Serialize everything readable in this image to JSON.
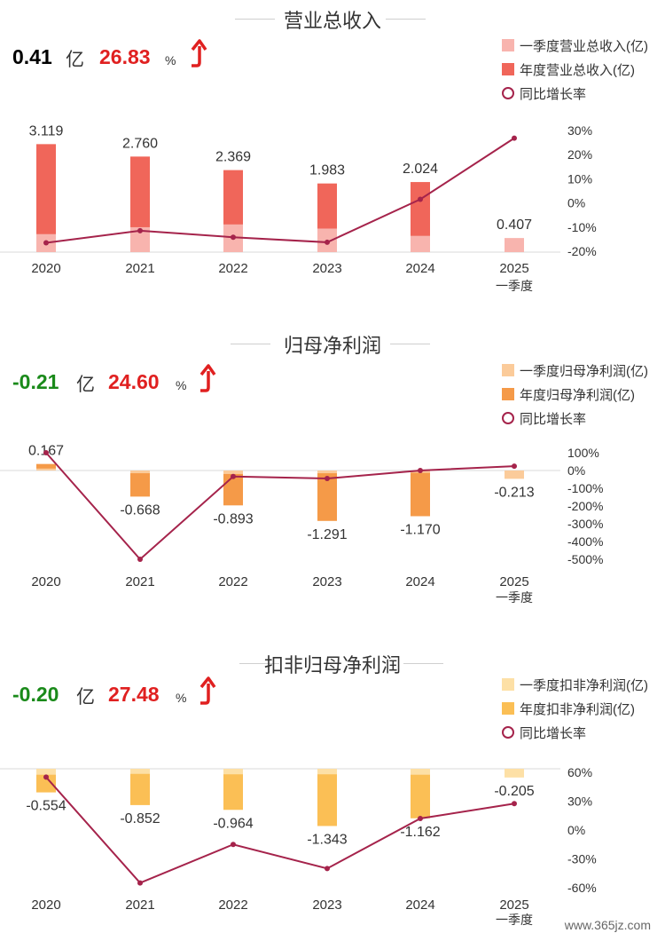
{
  "panels": [
    {
      "title": "营业总收入",
      "kpi": {
        "value": "0.41",
        "unit": "亿",
        "growth": "26.83",
        "pct": "%",
        "value_color": "#e02020"
      },
      "legend": [
        "一季度营业总收入(亿)",
        "年度营业总收入(亿)",
        "同比增长率"
      ],
      "colors": {
        "annual": "#f0665a",
        "q1": "#f8b4ae",
        "line": "#a5234b"
      }
    },
    {
      "title": "归母净利润",
      "kpi": {
        "value": "-0.21",
        "unit": "亿",
        "growth": "24.60",
        "pct": "%",
        "value_color": "#1a8a1a"
      },
      "legend": [
        "一季度归母净利润(亿)",
        "年度归母净利润(亿)",
        "同比增长率"
      ],
      "colors": {
        "annual": "#f59a48",
        "q1": "#fbcb9a",
        "line": "#a5234b"
      }
    },
    {
      "title": "扣非归母净利润",
      "kpi": {
        "value": "-0.20",
        "unit": "亿",
        "growth": "27.48",
        "pct": "%",
        "value_color": "#1a8a1a"
      },
      "legend": [
        "一季度扣非净利润(亿)",
        "年度扣非净利润(亿)",
        "同比增长率"
      ],
      "colors": {
        "annual": "#fbbf55",
        "q1": "#fde0a6",
        "line": "#a5234b"
      }
    }
  ],
  "chart_data": [
    {
      "type": "bar",
      "title": "营业总收入",
      "categories": [
        "2020",
        "2021",
        "2022",
        "2023",
        "2024",
        "2025"
      ],
      "category_sublabels": [
        "",
        "",
        "",
        "",
        "",
        "一季度"
      ],
      "series": [
        {
          "name": "一季度营业总收入(亿)",
          "values": [
            0.52,
            0.72,
            0.8,
            0.68,
            0.47,
            0.407
          ]
        },
        {
          "name": "年度营业总收入(亿)",
          "values": [
            3.119,
            2.76,
            2.369,
            1.983,
            2.024,
            null
          ]
        },
        {
          "name": "同比增长率",
          "type": "line",
          "axis": "right",
          "values": [
            -16.5,
            -11.5,
            -14.2,
            -16.3,
            1.5,
            26.83
          ]
        }
      ],
      "data_labels": [
        "3.119",
        "2.760",
        "2.369",
        "1.983",
        "2.024",
        "0.407"
      ],
      "yticks_right": [
        "30%",
        "20%",
        "10%",
        "0%",
        "-10%",
        "-20%"
      ],
      "ylim_right": [
        -20,
        30
      ]
    },
    {
      "type": "bar",
      "title": "归母净利润",
      "categories": [
        "2020",
        "2021",
        "2022",
        "2023",
        "2024",
        "2025"
      ],
      "category_sublabels": [
        "",
        "",
        "",
        "",
        "",
        "一季度"
      ],
      "series": [
        {
          "name": "一季度归母净利润(亿)",
          "values": [
            0.05,
            -0.07,
            -0.09,
            -0.07,
            -0.06,
            -0.213
          ]
        },
        {
          "name": "年度归母净利润(亿)",
          "values": [
            0.167,
            -0.668,
            -0.893,
            -1.291,
            -1.17,
            null
          ]
        },
        {
          "name": "同比增长率",
          "type": "line",
          "axis": "right",
          "values": [
            100,
            -500,
            -34,
            -45,
            0,
            24.6
          ]
        }
      ],
      "data_labels": [
        "0.167",
        "-0.668",
        "-0.893",
        "-1.291",
        "-1.170",
        "-0.213"
      ],
      "yticks_right": [
        "100%",
        "0%",
        "-100%",
        "-200%",
        "-300%",
        "-400%",
        "-500%"
      ],
      "ylim_right": [
        -500,
        100
      ]
    },
    {
      "type": "bar",
      "title": "扣非归母净利润",
      "categories": [
        "2020",
        "2021",
        "2022",
        "2023",
        "2024",
        "2025"
      ],
      "category_sublabels": [
        "",
        "",
        "",
        "",
        "",
        "一季度"
      ],
      "series": [
        {
          "name": "一季度扣非净利润(亿)",
          "values": [
            -0.14,
            -0.12,
            -0.13,
            -0.13,
            -0.14,
            -0.205
          ]
        },
        {
          "name": "年度扣非净利润(亿)",
          "values": [
            -0.554,
            -0.852,
            -0.964,
            -1.343,
            -1.162,
            null
          ]
        },
        {
          "name": "同比增长率",
          "type": "line",
          "axis": "right",
          "values": [
            55,
            -55,
            -15,
            -40,
            12,
            27.48
          ]
        }
      ],
      "data_labels": [
        "-0.554",
        "-0.852",
        "-0.964",
        "-1.343",
        "-1.162",
        "-0.205"
      ],
      "yticks_right": [
        "60%",
        "30%",
        "0%",
        "-30%",
        "-60%"
      ],
      "ylim_right": [
        -60,
        60
      ]
    }
  ],
  "watermark": "www.365jz.com"
}
